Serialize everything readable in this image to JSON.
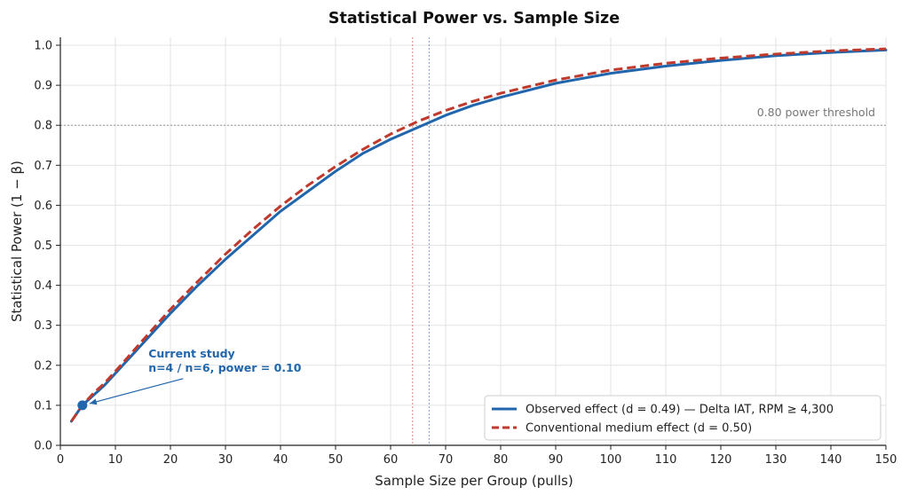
{
  "chart_data": {
    "type": "line",
    "title": "Statistical Power vs. Sample Size",
    "xlabel": "Sample Size per Group (pulls)",
    "ylabel": "Statistical Power (1 − β)",
    "xlim": [
      0,
      150
    ],
    "ylim": [
      0,
      1.02
    ],
    "xticks": [
      0,
      10,
      20,
      30,
      40,
      50,
      60,
      70,
      80,
      90,
      100,
      110,
      120,
      130,
      140,
      150
    ],
    "yticks": [
      0.0,
      0.1,
      0.2,
      0.3,
      0.4,
      0.5,
      0.6,
      0.7,
      0.8,
      0.9,
      1.0
    ],
    "grid": true,
    "legend_position": "bottom-right",
    "series": [
      {
        "name": "Observed effect (d = 0.49)  —  Delta IAT, RPM ≥ 4,300",
        "color": "#2166ac",
        "style": "solid",
        "x": [
          2,
          4,
          6,
          8,
          10,
          15,
          20,
          25,
          30,
          35,
          40,
          45,
          50,
          55,
          60,
          65,
          70,
          75,
          80,
          90,
          100,
          110,
          120,
          130,
          140,
          150
        ],
        "y": [
          0.06,
          0.1,
          0.125,
          0.15,
          0.18,
          0.255,
          0.33,
          0.4,
          0.465,
          0.525,
          0.585,
          0.635,
          0.685,
          0.73,
          0.765,
          0.795,
          0.825,
          0.85,
          0.87,
          0.905,
          0.93,
          0.948,
          0.962,
          0.974,
          0.982,
          0.988
        ]
      },
      {
        "name": "Conventional medium effect (d = 0.50)",
        "color": "#c0392b",
        "style": "dashed",
        "x": [
          2,
          4,
          6,
          8,
          10,
          15,
          20,
          25,
          30,
          35,
          40,
          45,
          50,
          55,
          60,
          65,
          70,
          75,
          80,
          90,
          100,
          110,
          120,
          130,
          140,
          150
        ],
        "y": [
          0.06,
          0.1,
          0.13,
          0.155,
          0.185,
          0.263,
          0.34,
          0.41,
          0.478,
          0.54,
          0.598,
          0.65,
          0.697,
          0.74,
          0.778,
          0.81,
          0.837,
          0.86,
          0.88,
          0.913,
          0.938,
          0.955,
          0.968,
          0.978,
          0.986,
          0.991
        ]
      }
    ],
    "reference_lines": {
      "threshold_y": 0.8,
      "threshold_label": "0.80 power threshold",
      "vlines": [
        {
          "x": 64,
          "color": "#c0392b"
        },
        {
          "x": 67,
          "color": "#2166ac"
        }
      ]
    },
    "marker": {
      "x": 4,
      "y": 0.1,
      "color": "#2166ac"
    },
    "annotation": {
      "lines": [
        "Current study",
        "n=4 / n=6, power = 0.10"
      ],
      "color": "#2166ac",
      "text_x": 16,
      "text_y": 0.22
    }
  }
}
